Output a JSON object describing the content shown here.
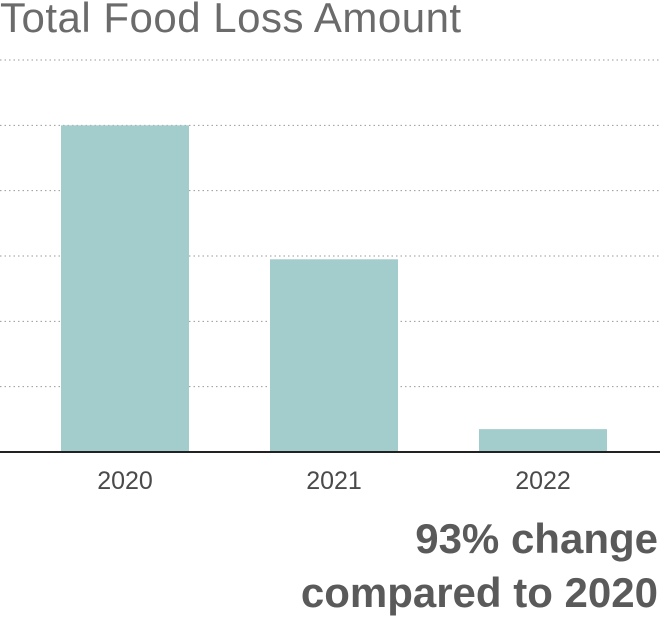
{
  "chart_data": {
    "type": "bar",
    "title": "Total Food Loss Amount",
    "categories": [
      "2020",
      "2021",
      "2022"
    ],
    "values": [
      100,
      59,
      7
    ],
    "ylim": [
      0,
      120
    ],
    "grid": true,
    "xlabel": "",
    "ylabel": "",
    "bar_color": "#a3cccc",
    "annotation": [
      "93% change",
      "compared to 2020"
    ]
  }
}
